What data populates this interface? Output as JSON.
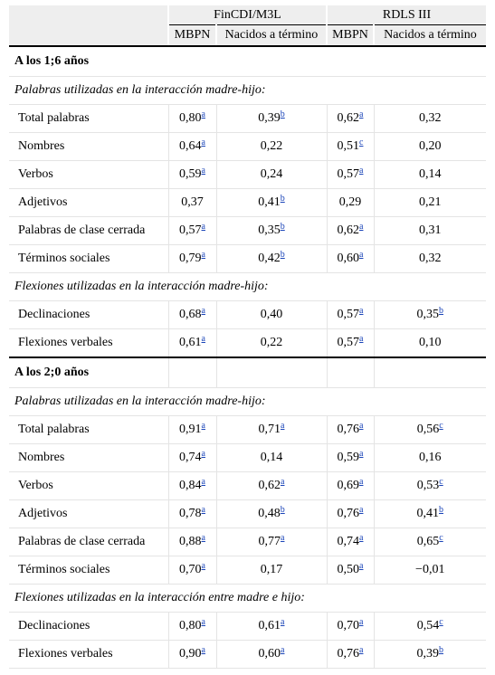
{
  "header": {
    "groups": [
      "FinCDI/M3L",
      "RDLS III"
    ],
    "columns": [
      "MBPN",
      "Nacidos a término",
      "MBPN",
      "Nacidos a término"
    ]
  },
  "sections": [
    {
      "title": "A los 1;6 años",
      "subsections": [
        {
          "title": "Palabras utilizadas en la interacción madre-hijo:",
          "rows": [
            {
              "label": "Total palabras",
              "cells": [
                [
                  "0,80",
                  "a"
                ],
                [
                  "0,39",
                  "b"
                ],
                [
                  "0,62",
                  "a"
                ],
                [
                  "0,32",
                  ""
                ]
              ]
            },
            {
              "label": "Nombres",
              "cells": [
                [
                  "0,64",
                  "a"
                ],
                [
                  "0,22",
                  ""
                ],
                [
                  "0,51",
                  "c"
                ],
                [
                  "0,20",
                  ""
                ]
              ]
            },
            {
              "label": "Verbos",
              "cells": [
                [
                  "0,59",
                  "a"
                ],
                [
                  "0,24",
                  ""
                ],
                [
                  "0,57",
                  "a"
                ],
                [
                  "0,14",
                  ""
                ]
              ]
            },
            {
              "label": "Adjetivos",
              "cells": [
                [
                  "0,37",
                  ""
                ],
                [
                  "0,41",
                  "b"
                ],
                [
                  "0,29",
                  ""
                ],
                [
                  "0,21",
                  ""
                ]
              ]
            },
            {
              "label": "Palabras de clase cerrada",
              "cells": [
                [
                  "0,57",
                  "a"
                ],
                [
                  "0,35",
                  "b"
                ],
                [
                  "0,62",
                  "a"
                ],
                [
                  "0,31",
                  ""
                ]
              ]
            },
            {
              "label": "Términos sociales",
              "cells": [
                [
                  "0,79",
                  "a"
                ],
                [
                  "0,42",
                  "b"
                ],
                [
                  "0,60",
                  "a"
                ],
                [
                  "0,32",
                  ""
                ]
              ]
            }
          ]
        },
        {
          "title": "Flexiones utilizadas en la interacción madre-hijo:",
          "rows": [
            {
              "label": "Declinaciones",
              "cells": [
                [
                  "0,68",
                  "a"
                ],
                [
                  "0,40",
                  ""
                ],
                [
                  "0,57",
                  "a"
                ],
                [
                  "0,35",
                  "b"
                ]
              ]
            },
            {
              "label": "Flexiones verbales",
              "cells": [
                [
                  "0,61",
                  "a"
                ],
                [
                  "0,22",
                  ""
                ],
                [
                  "0,57",
                  "a"
                ],
                [
                  "0,10",
                  ""
                ]
              ]
            }
          ]
        }
      ]
    },
    {
      "title": "A los 2;0 años",
      "subsections": [
        {
          "title": "Palabras utilizadas en la interacción madre-hijo:",
          "rows": [
            {
              "label": "Total palabras",
              "cells": [
                [
                  "0,91",
                  "a"
                ],
                [
                  "0,71",
                  "a"
                ],
                [
                  "0,76",
                  "a"
                ],
                [
                  "0,56",
                  "c"
                ]
              ]
            },
            {
              "label": "Nombres",
              "cells": [
                [
                  "0,74",
                  "a"
                ],
                [
                  "0,14",
                  ""
                ],
                [
                  "0,59",
                  "a"
                ],
                [
                  "0,16",
                  ""
                ]
              ]
            },
            {
              "label": "Verbos",
              "cells": [
                [
                  "0,84",
                  "a"
                ],
                [
                  "0,62",
                  "a"
                ],
                [
                  "0,69",
                  "a"
                ],
                [
                  "0,53",
                  "c"
                ]
              ]
            },
            {
              "label": "Adjetivos",
              "cells": [
                [
                  "0,78",
                  "a"
                ],
                [
                  "0,48",
                  "b"
                ],
                [
                  "0,76",
                  "a"
                ],
                [
                  "0,41",
                  "b"
                ]
              ]
            },
            {
              "label": "Palabras de clase cerrada",
              "cells": [
                [
                  "0,88",
                  "a"
                ],
                [
                  "0,77",
                  "a"
                ],
                [
                  "0,74",
                  "a"
                ],
                [
                  "0,65",
                  "c"
                ]
              ]
            },
            {
              "label": "Términos sociales",
              "cells": [
                [
                  "0,70",
                  "a"
                ],
                [
                  "0,17",
                  ""
                ],
                [
                  "0,50",
                  "a"
                ],
                [
                  "−0,01",
                  ""
                ]
              ]
            }
          ]
        },
        {
          "title": "Flexiones utilizadas en la interacción entre madre e hijo:",
          "rows": [
            {
              "label": "Declinaciones",
              "cells": [
                [
                  "0,80",
                  "a"
                ],
                [
                  "0,61",
                  "a"
                ],
                [
                  "0,70",
                  "a"
                ],
                [
                  "0,54",
                  "c"
                ]
              ]
            },
            {
              "label": "Flexiones verbales",
              "cells": [
                [
                  "0,90",
                  "a"
                ],
                [
                  "0,60",
                  "a"
                ],
                [
                  "0,76",
                  "a"
                ],
                [
                  "0,39",
                  "b"
                ]
              ]
            }
          ]
        }
      ]
    }
  ],
  "colors": {
    "link": "#1a44b8",
    "header_bg": "#eeeeee",
    "rule": "#000000",
    "grid": "#e4e4e4"
  }
}
